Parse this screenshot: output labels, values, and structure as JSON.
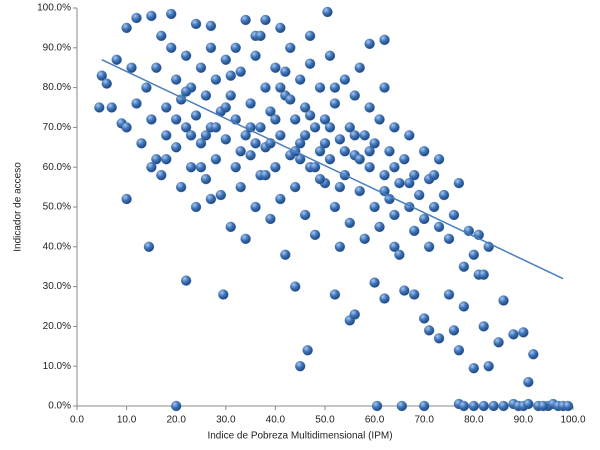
{
  "chart_data": {
    "type": "scatter",
    "x_label": "Indice de Pobreza Multidimensional (IPM)",
    "y_label": "Indicador de acceso",
    "xlim": [
      0,
      100
    ],
    "ylim": [
      0,
      100
    ],
    "xticks": [
      {
        "value": 0,
        "label": "0.0"
      },
      {
        "value": 10,
        "label": "10.0"
      },
      {
        "value": 20,
        "label": "20.0"
      },
      {
        "value": 30,
        "label": "30.0"
      },
      {
        "value": 40,
        "label": "40.0"
      },
      {
        "value": 50,
        "label": "50.0"
      },
      {
        "value": 60,
        "label": "60.0"
      },
      {
        "value": 70,
        "label": "70.0"
      },
      {
        "value": 80,
        "label": "80.0"
      },
      {
        "value": 90,
        "label": "90.0"
      },
      {
        "value": 100,
        "label": "100.0"
      }
    ],
    "yticks": [
      {
        "value": 0,
        "label": "0.0%"
      },
      {
        "value": 10,
        "label": "10.0%"
      },
      {
        "value": 20,
        "label": "20.0%"
      },
      {
        "value": 30,
        "label": "30.0%"
      },
      {
        "value": 40,
        "label": "40.0%"
      },
      {
        "value": 50,
        "label": "50.0%"
      },
      {
        "value": 60,
        "label": "60.0%"
      },
      {
        "value": 70,
        "label": "70.0%"
      },
      {
        "value": 80,
        "label": "80.0%"
      },
      {
        "value": 90,
        "label": "90.0%"
      },
      {
        "value": 100,
        "label": "100.0%"
      }
    ],
    "grid": false,
    "color": "#3f74b8",
    "x": [
      20,
      60.5,
      65.5,
      70,
      77,
      78,
      80,
      82,
      84,
      86,
      88,
      89,
      90,
      91,
      93,
      95,
      96,
      97,
      98,
      99,
      10,
      14.5,
      22,
      29.5,
      45,
      46.5,
      44,
      52,
      55,
      56,
      60,
      62,
      64,
      66,
      68,
      70,
      71,
      73,
      75,
      76,
      77,
      78,
      80,
      81,
      82,
      83,
      85,
      86,
      88,
      90,
      91,
      92,
      94,
      12,
      15,
      19,
      24,
      27,
      34,
      38,
      41,
      50.5,
      36,
      47,
      59,
      62,
      10,
      17,
      4.5,
      5,
      6,
      7,
      9,
      8,
      10,
      11,
      12,
      13,
      14,
      15,
      16,
      16,
      17,
      18,
      18,
      19,
      20,
      20,
      21,
      21,
      22,
      22,
      23,
      23,
      24,
      24,
      25,
      25,
      26,
      26,
      27,
      27,
      28,
      28,
      29,
      29,
      30,
      30,
      31,
      31,
      32,
      32,
      33,
      33,
      34,
      34,
      35,
      35,
      36,
      36,
      37,
      37,
      38,
      38,
      39,
      39,
      40,
      40,
      41,
      41,
      42,
      42,
      43,
      43,
      44,
      44,
      45,
      45,
      46,
      46,
      47,
      47,
      48,
      48,
      49,
      49,
      50,
      50,
      51,
      51,
      52,
      52,
      53,
      53,
      54,
      54,
      55,
      55,
      56,
      56,
      57,
      57,
      58,
      58,
      59,
      59,
      60,
      60,
      61,
      61,
      62,
      62,
      63,
      63,
      64,
      64,
      65,
      65,
      66,
      67,
      67,
      68,
      68,
      69,
      70,
      70,
      71,
      71,
      72,
      73,
      73,
      74,
      75,
      76,
      77,
      78,
      79,
      80,
      81,
      82,
      83,
      20,
      25,
      30,
      35,
      40,
      45,
      50,
      28,
      33,
      38,
      43,
      48,
      53,
      26,
      31,
      36,
      41,
      46,
      51,
      56,
      18,
      23,
      39,
      44,
      49,
      54,
      59,
      64,
      27,
      32,
      37,
      42,
      47,
      52,
      57,
      62,
      67,
      72,
      15,
      22
    ],
    "values": [
      0,
      0,
      0,
      0,
      0.5,
      0,
      0,
      0,
      0,
      0,
      0.5,
      0,
      0,
      0.5,
      0,
      0,
      0.5,
      0,
      0,
      0,
      52,
      40,
      31.5,
      28,
      10,
      14,
      30,
      28,
      21.5,
      23,
      31,
      27,
      40,
      29,
      28,
      22,
      19,
      17,
      28,
      19,
      14,
      25,
      9.5,
      33,
      20,
      10,
      16,
      26.5,
      18,
      18.5,
      6,
      13,
      0,
      97.5,
      98,
      98.5,
      96,
      95.5,
      97,
      97,
      95,
      99,
      93,
      93,
      91,
      92,
      95,
      93,
      75,
      83,
      81,
      75,
      71,
      87,
      70,
      85,
      76,
      66,
      80,
      72,
      62,
      85,
      58,
      75,
      68,
      90,
      82,
      65,
      55,
      77,
      88,
      70,
      60,
      80,
      73,
      50,
      85,
      66,
      57,
      78,
      70,
      90,
      62,
      82,
      53,
      74,
      67,
      87,
      45,
      78,
      60,
      72,
      84,
      55,
      68,
      42,
      76,
      63,
      88,
      50,
      70,
      58,
      80,
      65,
      47,
      74,
      85,
      60,
      68,
      52,
      78,
      38,
      63,
      90,
      72,
      55,
      82,
      66,
      48,
      75,
      60,
      86,
      70,
      43,
      64,
      80,
      56,
      72,
      88,
      62,
      50,
      76,
      67,
      40,
      82,
      58,
      70,
      46,
      63,
      78,
      54,
      85,
      68,
      42,
      60,
      75,
      50,
      66,
      72,
      45,
      58,
      80,
      52,
      64,
      70,
      48,
      56,
      38,
      62,
      50,
      68,
      44,
      58,
      53,
      47,
      64,
      40,
      57,
      50,
      45,
      62,
      53,
      42,
      48,
      56,
      35,
      44,
      38,
      43,
      33,
      40,
      72,
      60,
      75,
      70,
      72,
      62,
      66,
      70,
      64,
      58,
      77,
      60,
      55,
      68,
      83,
      66,
      80,
      68,
      70,
      68,
      62,
      68,
      66,
      64,
      57,
      64,
      64,
      60,
      52,
      90,
      93,
      84,
      73,
      80,
      62,
      54,
      56,
      58,
      60,
      79
    ],
    "trendline": {
      "color": "#4a7ebb",
      "x": [
        5,
        98
      ],
      "values": [
        87,
        32
      ]
    }
  }
}
